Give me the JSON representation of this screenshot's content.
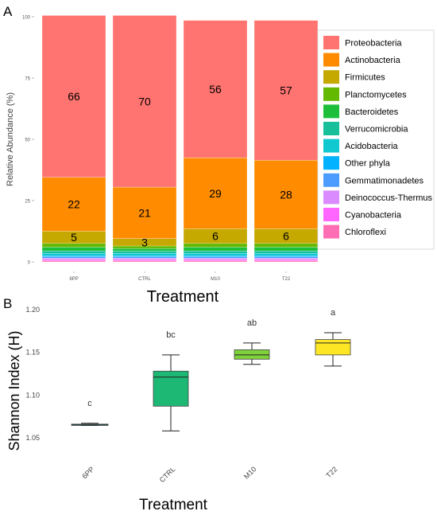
{
  "chart_data": [
    {
      "panel": "A",
      "type": "bar",
      "stacked": true,
      "categories": [
        "6PP",
        "CTRL",
        "M10",
        "T22"
      ],
      "xlabel": "Treatment",
      "ylabel": "Relative Abundance (%)",
      "ylim": [
        0,
        100
      ],
      "yticks": [
        0,
        25,
        50,
        75,
        100
      ],
      "grid": false,
      "legend_position": "right",
      "series": [
        {
          "name": "Chloroflexi",
          "color": "#FF6EB4",
          "values": [
            0.5,
            0.5,
            0.5,
            0.5
          ]
        },
        {
          "name": "Cyanobacteria",
          "color": "#FF66FF",
          "values": [
            0.5,
            0.5,
            0.5,
            0.5
          ]
        },
        {
          "name": "Deinococcus-Thermus",
          "color": "#D98BFF",
          "values": [
            0.5,
            0.5,
            0.5,
            0.5
          ]
        },
        {
          "name": "Gemmatimonadetes",
          "color": "#4C9BFF",
          "values": [
            0.5,
            0.5,
            0.5,
            0.5
          ]
        },
        {
          "name": "Other phyla",
          "color": "#00B2FF",
          "values": [
            0.5,
            0.5,
            0.5,
            0.5
          ]
        },
        {
          "name": "Acidobacteria",
          "color": "#10C8D0",
          "values": [
            1,
            1,
            1,
            1
          ]
        },
        {
          "name": "Verrucomicrobia",
          "color": "#17C09A",
          "values": [
            1,
            1,
            1,
            1
          ]
        },
        {
          "name": "Bacteroidetes",
          "color": "#1DBF3A",
          "values": [
            1.5,
            1,
            1.5,
            1.5
          ]
        },
        {
          "name": "Planctomycetes",
          "color": "#63B800",
          "values": [
            1.5,
            1,
            1.5,
            1.5
          ]
        },
        {
          "name": "Firmicutes",
          "color": "#C5A800",
          "values": [
            5,
            3,
            6,
            6
          ]
        },
        {
          "name": "Actinobacteria",
          "color": "#FF8C00",
          "values": [
            22,
            21,
            29,
            28
          ]
        },
        {
          "name": "Proteobacteria",
          "color": "#FF7470",
          "values": [
            66,
            70,
            56,
            57
          ]
        }
      ],
      "data_labels": {
        "Proteobacteria": [
          "66",
          "70",
          "56",
          "57"
        ],
        "Actinobacteria": [
          "22",
          "21",
          "29",
          "28"
        ],
        "Firmicutes": [
          "5",
          "3",
          "6",
          "6"
        ]
      },
      "legend_order": [
        "Proteobacteria",
        "Actinobacteria",
        "Firmicutes",
        "Planctomycetes",
        "Bacteroidetes",
        "Verrucomicrobia",
        "Acidobacteria",
        "Other phyla",
        "Gemmatimonadetes",
        "Deinococcus-Thermus",
        "Cyanobacteria",
        "Chloroflexi"
      ]
    },
    {
      "panel": "B",
      "type": "box",
      "categories": [
        "6PP",
        "CTRL",
        "M10",
        "T22"
      ],
      "xlabel": "Treatment",
      "ylabel": "Shannon Index (H)",
      "ylim": [
        1.05,
        1.2
      ],
      "yticks": [
        "1.05",
        "1.10",
        "1.15",
        "1.20"
      ],
      "grid": false,
      "boxes": [
        {
          "category": "6PP",
          "color": "#1FA9A0",
          "whisker_low": 1.0645,
          "q1": 1.0645,
          "median": 1.065,
          "q3": 1.066,
          "whisker_high": 1.067,
          "letter": "c"
        },
        {
          "category": "CTRL",
          "color": "#1DB873",
          "whisker_low": 1.058,
          "q1": 1.087,
          "median": 1.121,
          "q3": 1.128,
          "whisker_high": 1.147,
          "letter": "bc"
        },
        {
          "category": "M10",
          "color": "#7FD13B",
          "whisker_low": 1.136,
          "q1": 1.142,
          "median": 1.147,
          "q3": 1.153,
          "whisker_high": 1.161,
          "letter": "ab"
        },
        {
          "category": "T22",
          "color": "#FDE725",
          "whisker_low": 1.134,
          "q1": 1.147,
          "median": 1.161,
          "q3": 1.165,
          "whisker_high": 1.173,
          "letter": "a"
        }
      ]
    }
  ]
}
